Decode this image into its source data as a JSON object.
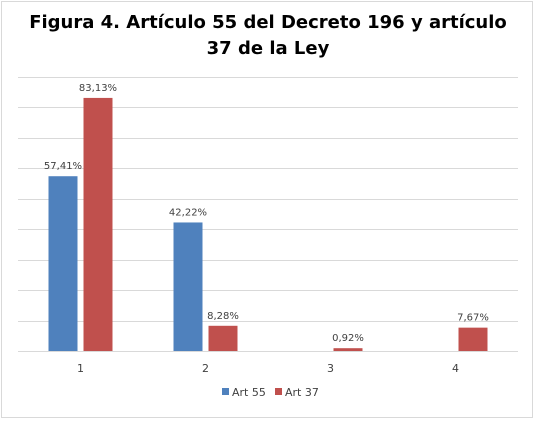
{
  "chart_data": {
    "type": "bar",
    "title_lines": [
      "Figura 4. Artículo 55 del Decreto 196  y artículo",
      "37 de la Ley"
    ],
    "categories": [
      "1",
      "2",
      "3",
      "4"
    ],
    "series": [
      {
        "name": "Art 55",
        "color": "#4f81bd",
        "values": [
          57.41,
          42.22,
          null,
          null
        ],
        "labels": [
          "57,41%",
          "42,22%",
          "",
          ""
        ]
      },
      {
        "name": "Art 37",
        "color": "#c0504d",
        "values": [
          83.13,
          8.28,
          0.92,
          7.67
        ],
        "labels": [
          "83,13%",
          "8,28%",
          "0,92%",
          "7,67%"
        ]
      }
    ],
    "ylim": [
      0,
      90
    ],
    "gridlines": true,
    "y_tick_labels_shown": false,
    "legend_position": "bottom"
  }
}
